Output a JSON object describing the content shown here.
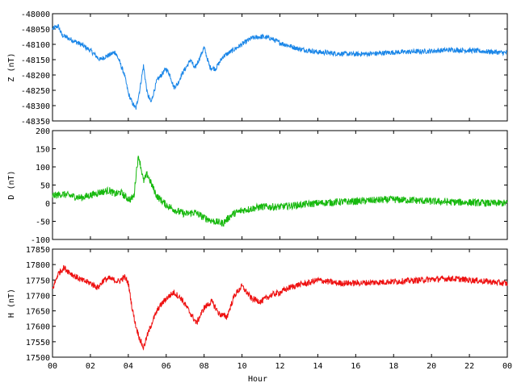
{
  "figure": {
    "xlabel": "Hour",
    "x_tick_labels": [
      "00",
      "02",
      "04",
      "06",
      "08",
      "10",
      "12",
      "14",
      "16",
      "18",
      "20",
      "22",
      "00"
    ]
  },
  "chart_data": [
    {
      "type": "line",
      "ylabel": "Z (nT)",
      "ylim": [
        -48350,
        -48000
      ],
      "y_ticks": [
        -48000,
        -48050,
        -48100,
        -48150,
        -48200,
        -48250,
        -48300,
        -48350
      ],
      "y_tick_labels": [
        "-48000",
        "-48050",
        "-48100",
        "-48150",
        "-48200",
        "-48250",
        "-48300",
        "-48350"
      ],
      "xlim": [
        0,
        24
      ],
      "series": [
        {
          "color": "#1a86e8",
          "noise": 8,
          "points": [
            [
              0.0,
              -48050
            ],
            [
              0.3,
              -48040
            ],
            [
              0.5,
              -48070
            ],
            [
              1.0,
              -48085
            ],
            [
              1.5,
              -48100
            ],
            [
              2.0,
              -48120
            ],
            [
              2.5,
              -48150
            ],
            [
              2.8,
              -48140
            ],
            [
              3.0,
              -48135
            ],
            [
              3.3,
              -48125
            ],
            [
              3.5,
              -48150
            ],
            [
              3.8,
              -48200
            ],
            [
              4.0,
              -48260
            ],
            [
              4.2,
              -48290
            ],
            [
              4.4,
              -48310
            ],
            [
              4.6,
              -48250
            ],
            [
              4.8,
              -48170
            ],
            [
              5.0,
              -48260
            ],
            [
              5.2,
              -48290
            ],
            [
              5.5,
              -48220
            ],
            [
              5.8,
              -48195
            ],
            [
              6.0,
              -48180
            ],
            [
              6.2,
              -48200
            ],
            [
              6.4,
              -48240
            ],
            [
              6.6,
              -48230
            ],
            [
              6.8,
              -48200
            ],
            [
              7.0,
              -48180
            ],
            [
              7.3,
              -48150
            ],
            [
              7.5,
              -48180
            ],
            [
              7.8,
              -48140
            ],
            [
              8.0,
              -48110
            ],
            [
              8.3,
              -48175
            ],
            [
              8.6,
              -48180
            ],
            [
              9.0,
              -48140
            ],
            [
              9.5,
              -48120
            ],
            [
              10.0,
              -48100
            ],
            [
              10.5,
              -48080
            ],
            [
              11.0,
              -48075
            ],
            [
              11.5,
              -48080
            ],
            [
              12.0,
              -48095
            ],
            [
              12.5,
              -48105
            ],
            [
              13.0,
              -48115
            ],
            [
              14.0,
              -48125
            ],
            [
              15.0,
              -48130
            ],
            [
              16.0,
              -48132
            ],
            [
              17.0,
              -48130
            ],
            [
              18.0,
              -48126
            ],
            [
              19.0,
              -48124
            ],
            [
              20.0,
              -48122
            ],
            [
              21.0,
              -48118
            ],
            [
              22.0,
              -48120
            ],
            [
              23.0,
              -48124
            ],
            [
              24.0,
              -48128
            ]
          ]
        }
      ]
    },
    {
      "type": "line",
      "ylabel": "D (nT)",
      "ylim": [
        -100,
        200
      ],
      "y_ticks": [
        200,
        150,
        100,
        50,
        0,
        -50,
        -100
      ],
      "y_tick_labels": [
        "200",
        "150",
        "100",
        "50",
        "0",
        "-50",
        "-100"
      ],
      "xlim": [
        0,
        24
      ],
      "series": [
        {
          "color": "#17b90e",
          "noise": 10,
          "points": [
            [
              0.0,
              20
            ],
            [
              0.5,
              25
            ],
            [
              1.0,
              20
            ],
            [
              1.5,
              15
            ],
            [
              2.0,
              22
            ],
            [
              2.5,
              30
            ],
            [
              3.0,
              35
            ],
            [
              3.3,
              25
            ],
            [
              3.6,
              30
            ],
            [
              3.9,
              15
            ],
            [
              4.1,
              10
            ],
            [
              4.3,
              20
            ],
            [
              4.45,
              100
            ],
            [
              4.55,
              130
            ],
            [
              4.7,
              90
            ],
            [
              4.8,
              60
            ],
            [
              5.0,
              80
            ],
            [
              5.2,
              55
            ],
            [
              5.5,
              20
            ],
            [
              6.0,
              -5
            ],
            [
              6.5,
              -20
            ],
            [
              7.0,
              -30
            ],
            [
              7.5,
              -25
            ],
            [
              8.0,
              -40
            ],
            [
              8.5,
              -50
            ],
            [
              9.0,
              -55
            ],
            [
              9.5,
              -30
            ],
            [
              10.0,
              -20
            ],
            [
              10.5,
              -15
            ],
            [
              11.0,
              -10
            ],
            [
              12.0,
              -10
            ],
            [
              13.0,
              -5
            ],
            [
              14.0,
              0
            ],
            [
              15.0,
              3
            ],
            [
              16.0,
              5
            ],
            [
              17.0,
              8
            ],
            [
              18.0,
              10
            ],
            [
              19.0,
              8
            ],
            [
              20.0,
              5
            ],
            [
              21.0,
              3
            ],
            [
              22.0,
              2
            ],
            [
              23.0,
              0
            ],
            [
              24.0,
              0
            ]
          ]
        }
      ]
    },
    {
      "type": "line",
      "ylabel": "H (nT)",
      "ylim": [
        17500,
        17850
      ],
      "y_ticks": [
        17850,
        17800,
        17750,
        17700,
        17650,
        17600,
        17550,
        17500
      ],
      "y_tick_labels": [
        "17850",
        "17800",
        "17750",
        "17700",
        "17650",
        "17600",
        "17550",
        "17500"
      ],
      "xlim": [
        0,
        24
      ],
      "series": [
        {
          "color": "#ee1111",
          "noise": 10,
          "points": [
            [
              0.0,
              17720
            ],
            [
              0.3,
              17770
            ],
            [
              0.6,
              17790
            ],
            [
              1.0,
              17770
            ],
            [
              1.5,
              17750
            ],
            [
              2.0,
              17740
            ],
            [
              2.4,
              17725
            ],
            [
              2.7,
              17750
            ],
            [
              3.0,
              17755
            ],
            [
              3.5,
              17745
            ],
            [
              3.8,
              17760
            ],
            [
              4.0,
              17740
            ],
            [
              4.2,
              17660
            ],
            [
              4.4,
              17600
            ],
            [
              4.6,
              17560
            ],
            [
              4.8,
              17530
            ],
            [
              5.0,
              17570
            ],
            [
              5.3,
              17620
            ],
            [
              5.6,
              17660
            ],
            [
              6.0,
              17690
            ],
            [
              6.4,
              17710
            ],
            [
              6.8,
              17690
            ],
            [
              7.2,
              17650
            ],
            [
              7.6,
              17610
            ],
            [
              8.0,
              17660
            ],
            [
              8.4,
              17680
            ],
            [
              8.8,
              17640
            ],
            [
              9.2,
              17630
            ],
            [
              9.6,
              17700
            ],
            [
              10.0,
              17730
            ],
            [
              10.5,
              17690
            ],
            [
              11.0,
              17680
            ],
            [
              11.5,
              17700
            ],
            [
              12.0,
              17710
            ],
            [
              12.5,
              17725
            ],
            [
              13.0,
              17735
            ],
            [
              13.5,
              17740
            ],
            [
              14.0,
              17750
            ],
            [
              15.0,
              17740
            ],
            [
              16.0,
              17740
            ],
            [
              17.0,
              17742
            ],
            [
              18.0,
              17745
            ],
            [
              19.0,
              17748
            ],
            [
              20.0,
              17752
            ],
            [
              21.0,
              17755
            ],
            [
              22.0,
              17750
            ],
            [
              23.0,
              17745
            ],
            [
              24.0,
              17738
            ]
          ]
        }
      ]
    }
  ]
}
